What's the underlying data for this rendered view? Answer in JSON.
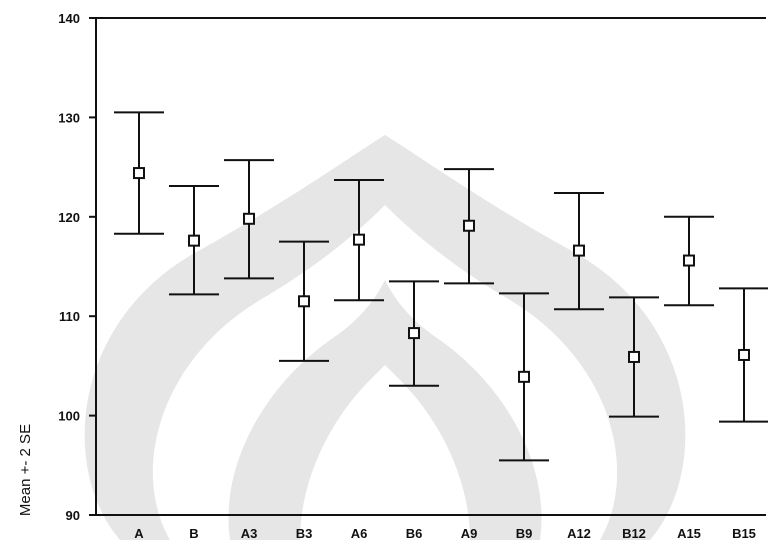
{
  "chart_data": {
    "type": "errorbar",
    "title": "",
    "xlabel": "",
    "ylabel": "Mean +- 2 SE",
    "ylim": [
      90,
      140
    ],
    "yticks": [
      90,
      100,
      110,
      120,
      130,
      140
    ],
    "grid": false,
    "legend": "none",
    "categories": [
      "A",
      "B",
      "A3",
      "B3",
      "A6",
      "B6",
      "A9",
      "B9",
      "A12",
      "B12",
      "A15",
      "B15"
    ],
    "series": [
      {
        "mean": [
          124.4,
          117.6,
          119.8,
          111.5,
          117.7,
          108.3,
          119.1,
          103.9,
          116.6,
          105.9,
          115.6,
          106.1
        ],
        "upper": [
          130.5,
          123.1,
          125.7,
          117.5,
          123.7,
          113.5,
          124.8,
          112.3,
          122.4,
          111.9,
          120.0,
          112.8
        ],
        "lower": [
          118.3,
          112.2,
          113.8,
          105.5,
          111.6,
          103.0,
          113.3,
          95.5,
          110.7,
          99.9,
          111.1,
          99.4
        ]
      }
    ],
    "colors": {
      "ink": "#111111",
      "watermark": "#e6e6e6"
    }
  }
}
